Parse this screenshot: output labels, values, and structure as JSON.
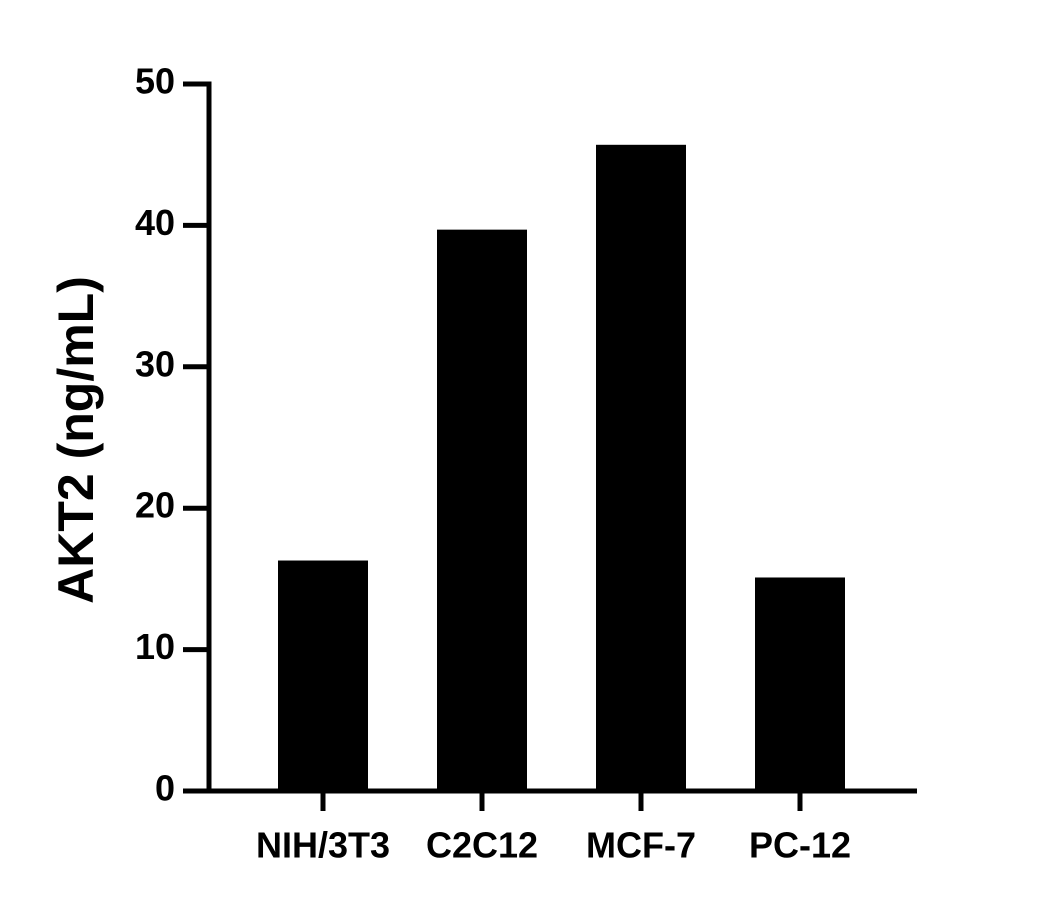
{
  "chart_data": {
    "type": "bar",
    "y_label": "AKT2 (ng/mL)",
    "categories": [
      "NIH/3T3",
      "C2C12",
      "MCF-7",
      "PC-12"
    ],
    "values": [
      16.3,
      39.7,
      45.7,
      15.1
    ],
    "color": "#000000",
    "ylim": [
      0,
      50
    ],
    "yticks": [
      0,
      10,
      20,
      30,
      40,
      50
    ]
  }
}
